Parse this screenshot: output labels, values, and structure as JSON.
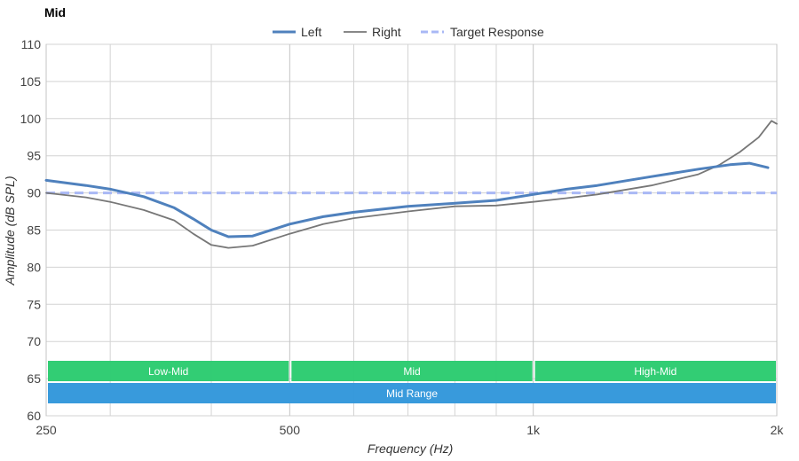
{
  "chart_data": {
    "type": "line",
    "title": "Mid",
    "xlabel": "Frequency (Hz)",
    "ylabel": "Amplitude (dB SPL)",
    "x_scale": "log",
    "xlim": [
      250,
      2000
    ],
    "ylim": [
      60,
      110
    ],
    "x_ticks": [
      {
        "value": 250,
        "label": "250"
      },
      {
        "value": 500,
        "label": "500"
      },
      {
        "value": 1000,
        "label": "1k"
      },
      {
        "value": 2000,
        "label": "2k"
      }
    ],
    "x_minor_gridlines": [
      300,
      400,
      600,
      700,
      800,
      900
    ],
    "y_ticks": [
      60,
      65,
      70,
      75,
      80,
      85,
      90,
      95,
      100,
      105,
      110
    ],
    "grid": true,
    "legend_position": "top-center",
    "series": [
      {
        "name": "Left",
        "color": "#4f81bd",
        "style": "solid-thick",
        "x": [
          250,
          280,
          300,
          330,
          360,
          380,
          400,
          420,
          450,
          500,
          550,
          600,
          700,
          800,
          900,
          1000,
          1100,
          1200,
          1400,
          1600,
          1750,
          1850,
          1950
        ],
        "y": [
          91.7,
          91.0,
          90.5,
          89.5,
          88.0,
          86.5,
          85.0,
          84.1,
          84.2,
          85.8,
          86.8,
          87.4,
          88.2,
          88.6,
          89.0,
          89.8,
          90.5,
          91.0,
          92.2,
          93.2,
          93.8,
          94.0,
          93.4
        ]
      },
      {
        "name": "Right",
        "color": "#777777",
        "style": "solid-thin",
        "x": [
          250,
          280,
          300,
          330,
          360,
          380,
          400,
          420,
          450,
          500,
          550,
          600,
          700,
          800,
          900,
          1000,
          1100,
          1200,
          1400,
          1600,
          1700,
          1800,
          1900,
          1970,
          2000
        ],
        "y": [
          90.0,
          89.4,
          88.8,
          87.7,
          86.3,
          84.5,
          83.0,
          82.6,
          82.9,
          84.5,
          85.8,
          86.6,
          87.5,
          88.2,
          88.3,
          88.8,
          89.3,
          89.8,
          91.0,
          92.5,
          93.8,
          95.5,
          97.5,
          99.7,
          99.3
        ]
      },
      {
        "name": "Target Response",
        "color": "#a9b8f5",
        "style": "dashed",
        "x": [
          250,
          2000
        ],
        "y": [
          90,
          90
        ]
      }
    ],
    "bands": [
      {
        "label": "Low-Mid",
        "from": 250,
        "to": 500,
        "color": "#2ecc71",
        "row": 0
      },
      {
        "label": "Mid",
        "from": 500,
        "to": 1000,
        "color": "#2ecc71",
        "row": 0
      },
      {
        "label": "High-Mid",
        "from": 1000,
        "to": 2000,
        "color": "#2ecc71",
        "row": 0
      },
      {
        "label": "Mid Range",
        "from": 250,
        "to": 2000,
        "color": "#3498db",
        "row": 1
      }
    ]
  }
}
